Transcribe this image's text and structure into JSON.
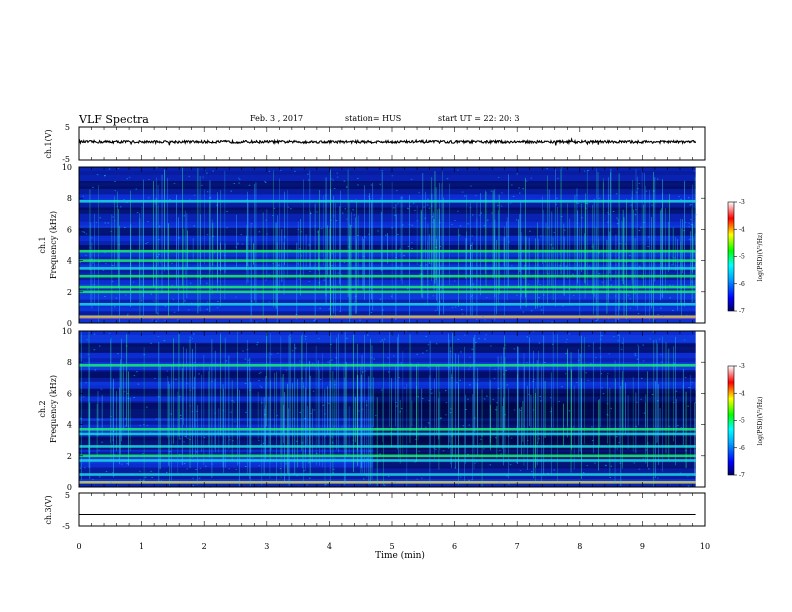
{
  "header": {
    "title": "VLF Spectra",
    "date": "Feb. 3 , 2017",
    "station": "station= HUS",
    "start": "start UT = 22: 20: 3"
  },
  "chart_data": [
    {
      "type": "line",
      "panel": "ch1-waveform",
      "ylabel": "ch.1(V)",
      "yticks": [
        "5",
        "-5"
      ],
      "ylim": [
        -5,
        5
      ],
      "xlim": [
        0,
        10
      ],
      "approx_level": 0.5,
      "approx_amplitude": 0.4
    },
    {
      "type": "heatmap",
      "panel": "ch1-spectrogram",
      "ylabel_top": "ch.1",
      "ylabel": "Frequency (kHz)",
      "yticks": [
        "0",
        "2",
        "4",
        "6",
        "8",
        "10"
      ],
      "ylim": [
        0,
        10
      ],
      "xlim": [
        0,
        9.85
      ],
      "noise_bands_khz": [
        0.4,
        1.2,
        2.0,
        2.3,
        3.0,
        3.5,
        4.0,
        4.6,
        7.8
      ],
      "colorbar": {
        "label": "log(PSD)(V²/Hz)",
        "ticks": [
          "-3",
          "-4",
          "-5",
          "-6",
          "-7"
        ],
        "range": [
          -7,
          -3
        ],
        "colors": [
          "#000066",
          "#0000ff",
          "#00aaff",
          "#00ffff",
          "#00ff00",
          "#ffff00",
          "#ff0000",
          "#ffffff"
        ]
      }
    },
    {
      "type": "heatmap",
      "panel": "ch2-spectrogram",
      "ylabel_top": "ch.2",
      "ylabel": "Frequency (kHz)",
      "yticks": [
        "0",
        "2",
        "4",
        "6",
        "8",
        "10"
      ],
      "ylim": [
        0,
        10
      ],
      "xlim": [
        0,
        9.85
      ],
      "noise_bands_khz": [
        0.3,
        0.8,
        1.7,
        2.0,
        2.6,
        3.4,
        3.7,
        7.8
      ],
      "colorbar": {
        "label": "log(PSD)(V²/Hz)",
        "ticks": [
          "-3",
          "-4",
          "-5",
          "-6",
          "-7"
        ],
        "range": [
          -7,
          -3
        ],
        "colors": [
          "#000066",
          "#0000ff",
          "#00aaff",
          "#00ffff",
          "#00ff00",
          "#ffff00",
          "#ff0000",
          "#ffffff"
        ]
      }
    },
    {
      "type": "line",
      "panel": "ch3-waveform",
      "ylabel": "ch.3(V)",
      "yticks": [
        "5",
        "-5"
      ],
      "ylim": [
        -5,
        5
      ],
      "xlim": [
        0,
        10
      ],
      "approx_level": -1.5,
      "approx_amplitude": 0
    }
  ],
  "xaxis": {
    "label": "Time (min)",
    "ticks": [
      "0",
      "1",
      "2",
      "3",
      "4",
      "5",
      "6",
      "7",
      "8",
      "9",
      "10"
    ]
  }
}
